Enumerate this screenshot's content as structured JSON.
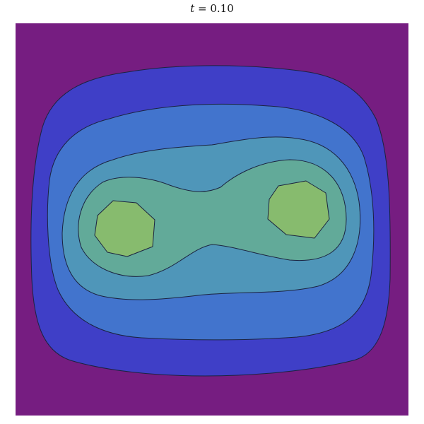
{
  "chart_data": {
    "type": "contour",
    "title": {
      "var": "t",
      "rest": " = 0.10"
    },
    "levels": 5,
    "colors": [
      "#761d81",
      "#3f3fc7",
      "#4274cd",
      "#4f96b9",
      "#62aa99",
      "#87bb6e"
    ],
    "description_free": true
  }
}
